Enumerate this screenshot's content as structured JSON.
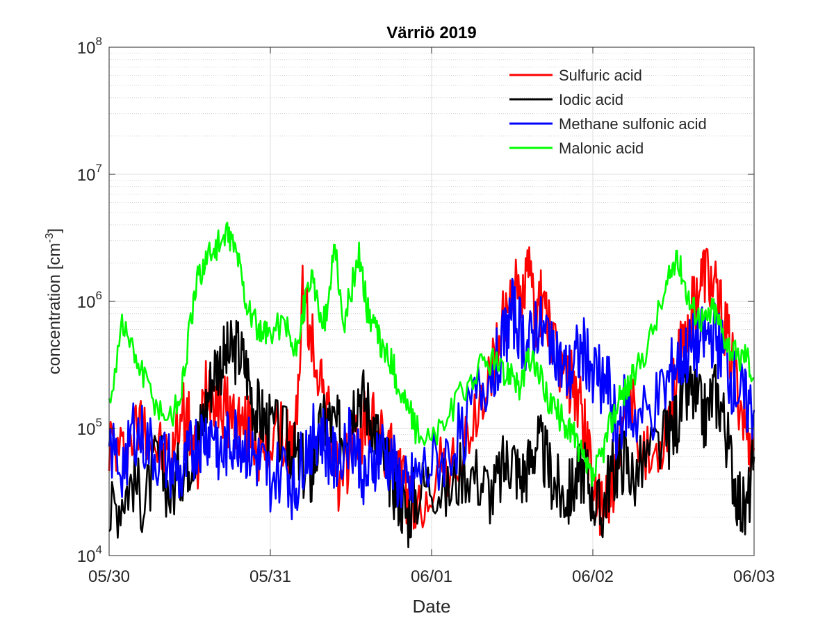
{
  "chart_data": {
    "type": "line",
    "title": "Värriö 2019",
    "xlabel": "Date",
    "ylabel": "concentration [cm",
    "ylabel_sup": "-3",
    "ylabel_close": "]",
    "yscale": "log",
    "ylim": [
      10000,
      100000000
    ],
    "xlim": [
      "05/30",
      "06/03"
    ],
    "x_ticks": [
      "05/30",
      "05/31",
      "06/01",
      "06/02",
      "06/03"
    ],
    "y_ticks": [
      {
        "base": "10",
        "exp": "4"
      },
      {
        "base": "10",
        "exp": "5"
      },
      {
        "base": "10",
        "exp": "6"
      },
      {
        "base": "10",
        "exp": "7"
      },
      {
        "base": "10",
        "exp": "8"
      }
    ],
    "x_unit": "days since 05/30 00:00",
    "grid": true,
    "legend_position": "top-right",
    "series": [
      {
        "name": "Sulfuric acid",
        "color": "#ff0000",
        "x": [
          0.0,
          0.08,
          0.15,
          0.22,
          0.3,
          0.38,
          0.45,
          0.5,
          0.55,
          0.6,
          0.65,
          0.7,
          0.75,
          0.8,
          0.85,
          0.9,
          0.95,
          1.0,
          1.1,
          1.15,
          1.2,
          1.25,
          1.3,
          1.35,
          1.4,
          1.45,
          1.5,
          1.55,
          1.6,
          1.65,
          1.7,
          1.75,
          1.8,
          1.85,
          1.9,
          2.0,
          2.1,
          2.2,
          2.3,
          2.38,
          2.45,
          2.5,
          2.55,
          2.6,
          2.65,
          2.7,
          2.75,
          2.8,
          2.85,
          2.9,
          2.95,
          3.0,
          3.05,
          3.1,
          3.15,
          3.2,
          3.25,
          3.35,
          3.45,
          3.5,
          3.55,
          3.6,
          3.65,
          3.7,
          3.75,
          3.8,
          3.85,
          3.9,
          3.95,
          4.0
        ],
        "y": [
          80000,
          60000,
          90000,
          120000,
          70000,
          50000,
          150000,
          100000,
          50000,
          250000,
          200000,
          150000,
          130000,
          110000,
          100000,
          90000,
          60000,
          80000,
          90000,
          60000,
          1200000,
          500000,
          300000,
          150000,
          50000,
          30000,
          90000,
          80000,
          120000,
          100000,
          70000,
          60000,
          40000,
          30000,
          20000,
          40000,
          50000,
          60000,
          150000,
          300000,
          700000,
          1500000,
          900000,
          1800000,
          700000,
          1200000,
          400000,
          300000,
          250000,
          200000,
          100000,
          40000,
          20000,
          30000,
          50000,
          100000,
          150000,
          50000,
          100000,
          200000,
          400000,
          700000,
          1200000,
          1800000,
          1200000,
          800000,
          400000,
          200000,
          100000,
          70000
        ]
      },
      {
        "name": "Iodic acid",
        "color": "#000000",
        "x": [
          0.0,
          0.08,
          0.15,
          0.22,
          0.3,
          0.38,
          0.45,
          0.5,
          0.55,
          0.6,
          0.65,
          0.7,
          0.75,
          0.8,
          0.85,
          0.9,
          0.95,
          1.0,
          1.1,
          1.15,
          1.2,
          1.25,
          1.3,
          1.35,
          1.4,
          1.45,
          1.5,
          1.55,
          1.6,
          1.65,
          1.7,
          1.75,
          1.8,
          1.85,
          1.9,
          2.0,
          2.1,
          2.2,
          2.3,
          2.38,
          2.45,
          2.5,
          2.55,
          2.6,
          2.65,
          2.7,
          2.75,
          2.8,
          2.85,
          2.9,
          2.95,
          3.0,
          3.05,
          3.1,
          3.15,
          3.2,
          3.25,
          3.35,
          3.45,
          3.5,
          3.55,
          3.6,
          3.65,
          3.7,
          3.75,
          3.8,
          3.85,
          3.9,
          3.95,
          4.0
        ],
        "y": [
          20000,
          30000,
          40000,
          25000,
          60000,
          30000,
          50000,
          60000,
          80000,
          150000,
          300000,
          350000,
          380000,
          420000,
          300000,
          150000,
          120000,
          100000,
          80000,
          60000,
          50000,
          40000,
          80000,
          120000,
          100000,
          90000,
          150000,
          200000,
          150000,
          100000,
          60000,
          40000,
          30000,
          20000,
          30000,
          40000,
          30000,
          50000,
          40000,
          30000,
          50000,
          60000,
          40000,
          50000,
          80000,
          60000,
          40000,
          30000,
          30000,
          40000,
          50000,
          30000,
          20000,
          40000,
          50000,
          60000,
          40000,
          60000,
          80000,
          100000,
          150000,
          200000,
          150000,
          120000,
          200000,
          150000,
          60000,
          30000,
          20000,
          60000
        ]
      },
      {
        "name": "Methane sulfonic acid",
        "color": "#0000ff",
        "x": [
          0.0,
          0.08,
          0.15,
          0.22,
          0.3,
          0.38,
          0.45,
          0.5,
          0.55,
          0.6,
          0.65,
          0.7,
          0.75,
          0.8,
          0.85,
          0.9,
          0.95,
          1.0,
          1.1,
          1.15,
          1.2,
          1.25,
          1.3,
          1.35,
          1.4,
          1.45,
          1.5,
          1.55,
          1.6,
          1.65,
          1.7,
          1.75,
          1.8,
          1.85,
          1.9,
          2.0,
          2.1,
          2.2,
          2.3,
          2.38,
          2.45,
          2.5,
          2.55,
          2.6,
          2.65,
          2.7,
          2.75,
          2.8,
          2.85,
          2.9,
          2.95,
          3.0,
          3.05,
          3.1,
          3.15,
          3.2,
          3.25,
          3.35,
          3.45,
          3.5,
          3.55,
          3.6,
          3.65,
          3.7,
          3.75,
          3.8,
          3.85,
          3.9,
          3.95,
          4.0
        ],
        "y": [
          70000,
          50000,
          100000,
          80000,
          60000,
          50000,
          40000,
          60000,
          80000,
          90000,
          100000,
          60000,
          80000,
          90000,
          70000,
          60000,
          50000,
          40000,
          50000,
          30000,
          60000,
          80000,
          100000,
          70000,
          50000,
          80000,
          90000,
          60000,
          40000,
          60000,
          70000,
          50000,
          40000,
          30000,
          40000,
          50000,
          60000,
          100000,
          200000,
          300000,
          500000,
          800000,
          600000,
          400000,
          700000,
          500000,
          600000,
          300000,
          250000,
          350000,
          400000,
          300000,
          250000,
          200000,
          100000,
          150000,
          120000,
          130000,
          200000,
          300000,
          350000,
          400000,
          450000,
          500000,
          550000,
          400000,
          250000,
          200000,
          150000,
          140000
        ]
      },
      {
        "name": "Malonic acid",
        "color": "#00ff00",
        "x": [
          0.0,
          0.08,
          0.15,
          0.22,
          0.3,
          0.38,
          0.45,
          0.5,
          0.55,
          0.6,
          0.65,
          0.7,
          0.75,
          0.8,
          0.85,
          0.9,
          0.95,
          1.0,
          1.1,
          1.15,
          1.2,
          1.25,
          1.3,
          1.35,
          1.4,
          1.45,
          1.5,
          1.55,
          1.6,
          1.65,
          1.7,
          1.75,
          1.8,
          1.85,
          1.9,
          2.0,
          2.1,
          2.2,
          2.3,
          2.38,
          2.45,
          2.5,
          2.55,
          2.6,
          2.65,
          2.7,
          2.75,
          2.8,
          2.85,
          2.9,
          2.95,
          3.0,
          3.05,
          3.1,
          3.15,
          3.2,
          3.25,
          3.35,
          3.45,
          3.5,
          3.55,
          3.6,
          3.65,
          3.7,
          3.75,
          3.8,
          3.85,
          3.9,
          3.95,
          4.0
        ],
        "y": [
          150000,
          700000,
          400000,
          250000,
          150000,
          120000,
          200000,
          600000,
          1500000,
          2200000,
          2600000,
          3000000,
          3300000,
          2200000,
          1000000,
          700000,
          500000,
          600000,
          700000,
          350000,
          800000,
          1500000,
          900000,
          700000,
          3200000,
          600000,
          1200000,
          2400000,
          900000,
          600000,
          400000,
          350000,
          200000,
          150000,
          100000,
          80000,
          120000,
          200000,
          300000,
          350000,
          250000,
          300000,
          200000,
          350000,
          300000,
          200000,
          150000,
          120000,
          100000,
          80000,
          50000,
          40000,
          60000,
          100000,
          150000,
          200000,
          250000,
          500000,
          1200000,
          2000000,
          1800000,
          1000000,
          800000,
          700000,
          900000,
          600000,
          450000,
          350000,
          400000,
          250000
        ]
      }
    ]
  }
}
